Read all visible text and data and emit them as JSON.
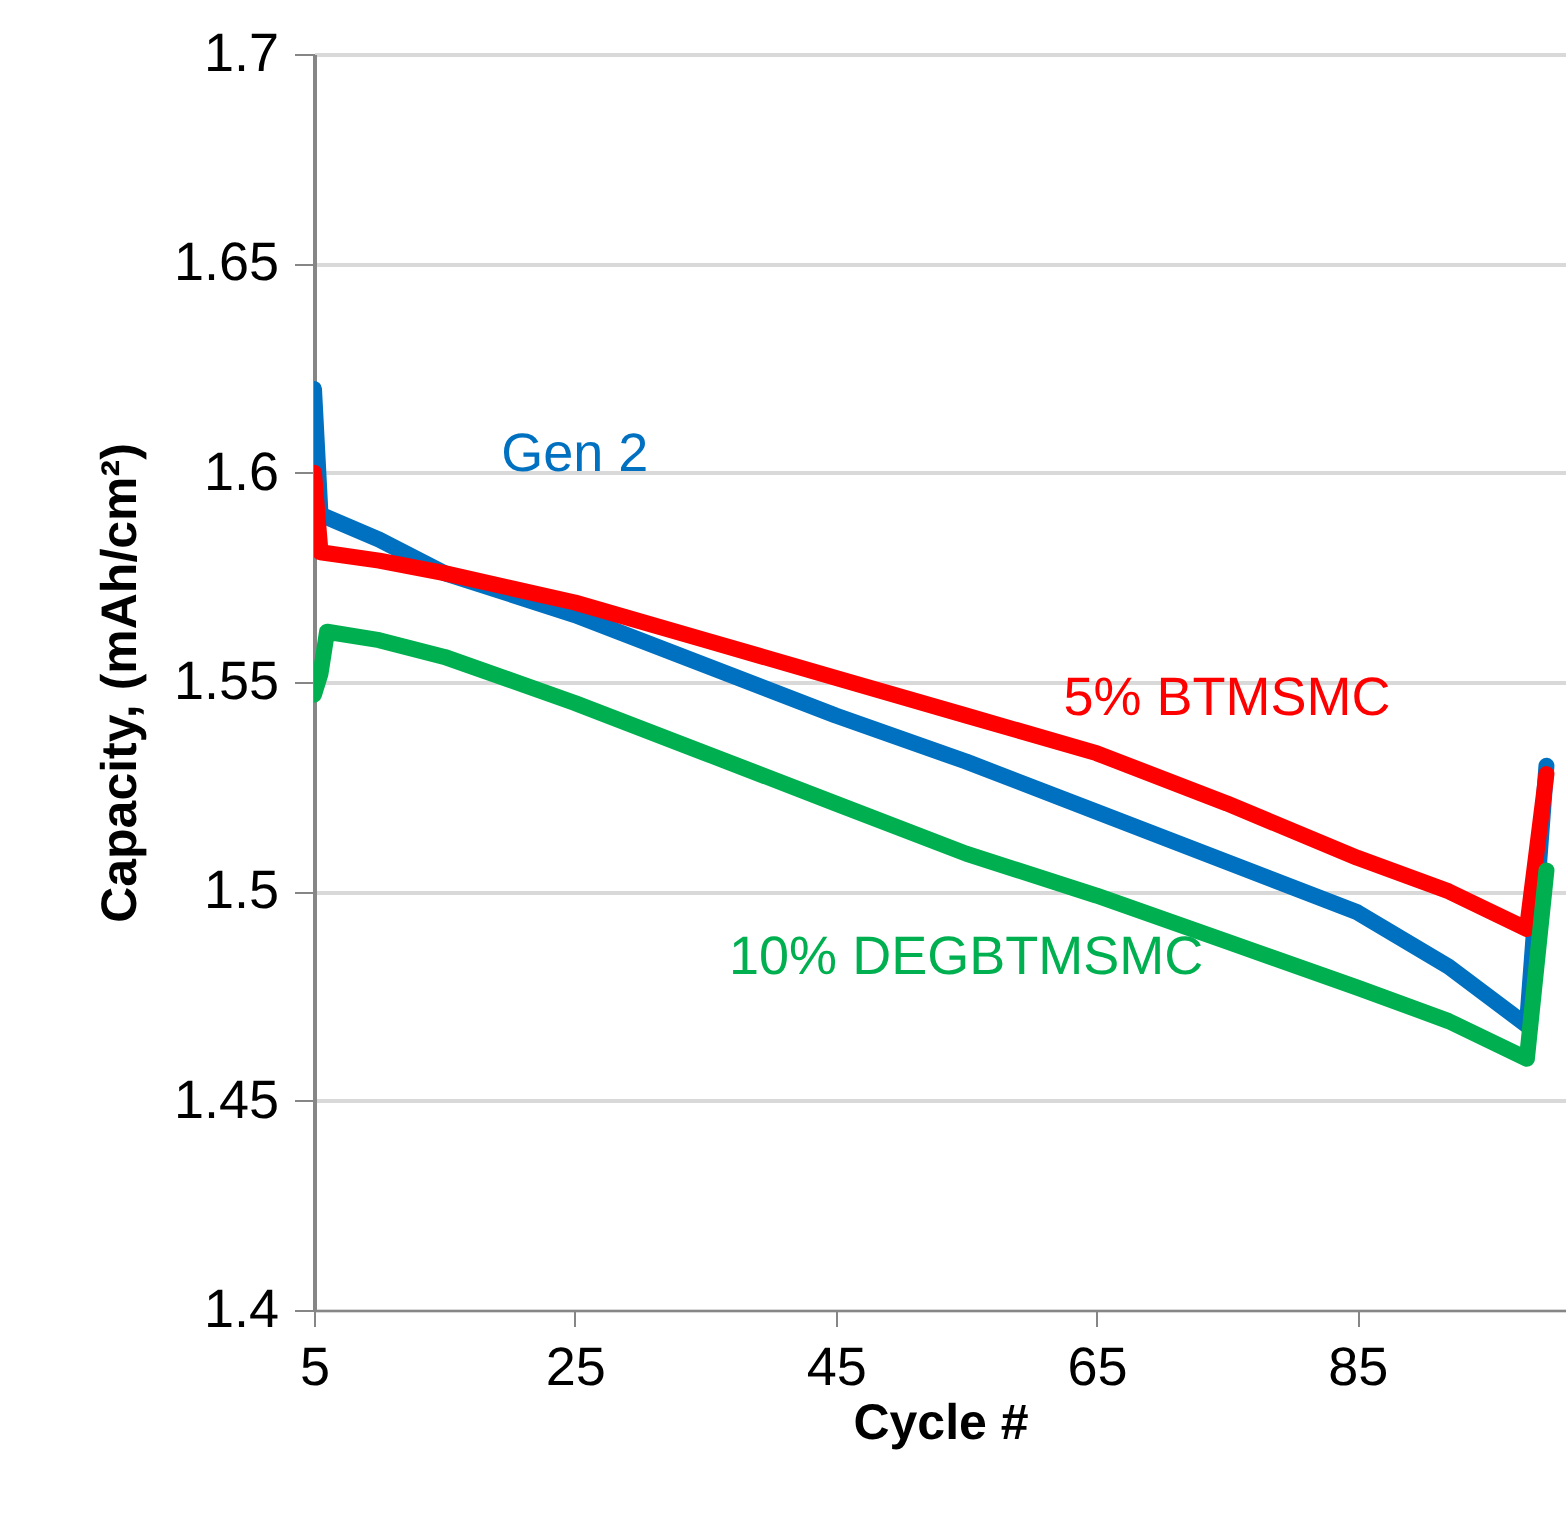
{
  "chart_data": {
    "type": "line",
    "xlabel": "Cycle #",
    "ylabel": "Capacity, (mAh/cm²)",
    "xlim": [
      5,
      101
    ],
    "xticks": [
      5,
      25,
      45,
      65,
      85
    ],
    "ylim": [
      1.4,
      1.7
    ],
    "yticks": [
      1.4,
      1.45,
      1.5,
      1.55,
      1.6,
      1.65,
      1.7
    ],
    "grid": "y",
    "marker": "none",
    "line_style": "solid",
    "series": [
      {
        "name": "Gen 2",
        "color": "#0070c0",
        "x": [
          5,
          5.5,
          10,
          15,
          25,
          35,
          45,
          55,
          65,
          75,
          85,
          92,
          98,
          99.5
        ],
        "values": [
          1.62,
          1.59,
          1.584,
          1.576,
          1.566,
          1.554,
          1.542,
          1.531,
          1.519,
          1.507,
          1.495,
          1.482,
          1.468,
          1.53
        ]
      },
      {
        "name": "5% BTMSMC",
        "color": "#ff0000",
        "x": [
          5,
          5.5,
          10,
          15,
          25,
          35,
          45,
          55,
          65,
          75,
          85,
          92,
          98,
          99.5
        ],
        "values": [
          1.6,
          1.581,
          1.579,
          1.576,
          1.569,
          1.56,
          1.551,
          1.542,
          1.533,
          1.521,
          1.508,
          1.5,
          1.491,
          1.528
        ]
      },
      {
        "name": "10% DEGBTMSMC",
        "color": "#00b050",
        "x": [
          5,
          5.5,
          6,
          10,
          15,
          25,
          35,
          45,
          55,
          65,
          75,
          85,
          92,
          98,
          99.5
        ],
        "values": [
          1.547,
          1.552,
          1.562,
          1.56,
          1.556,
          1.545,
          1.533,
          1.521,
          1.509,
          1.499,
          1.488,
          1.477,
          1.469,
          1.46,
          1.505
        ]
      }
    ]
  }
}
